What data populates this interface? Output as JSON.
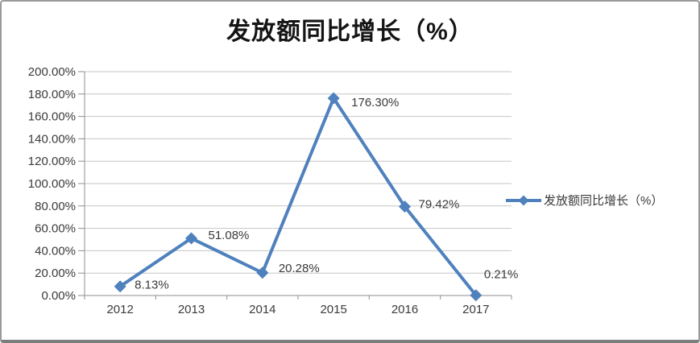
{
  "chart_data": {
    "type": "line",
    "title": "发放额同比增长（%）",
    "categories": [
      "2012",
      "2013",
      "2014",
      "2015",
      "2016",
      "2017"
    ],
    "series": [
      {
        "name": "发放额同比增长（%）",
        "values": [
          8.13,
          51.08,
          20.28,
          176.3,
          79.42,
          0.21
        ]
      }
    ],
    "data_labels": [
      "8.13%",
      "51.08%",
      "20.28%",
      "176.30%",
      "79.42%",
      "0.21%"
    ],
    "y_ticks": [
      "0.00%",
      "20.00%",
      "40.00%",
      "60.00%",
      "80.00%",
      "100.00%",
      "120.00%",
      "140.00%",
      "160.00%",
      "180.00%",
      "200.00%"
    ],
    "ylim": [
      0,
      200
    ],
    "y_step": 20,
    "xlabel": "",
    "ylabel": "",
    "grid": true,
    "legend_position": "right",
    "marker": "diamond",
    "colors": {
      "line": "#4F81BD",
      "grid": "#c6c6c6",
      "axis": "#8f8f8f",
      "text": "#3a3a3a",
      "title": "#141414"
    }
  }
}
